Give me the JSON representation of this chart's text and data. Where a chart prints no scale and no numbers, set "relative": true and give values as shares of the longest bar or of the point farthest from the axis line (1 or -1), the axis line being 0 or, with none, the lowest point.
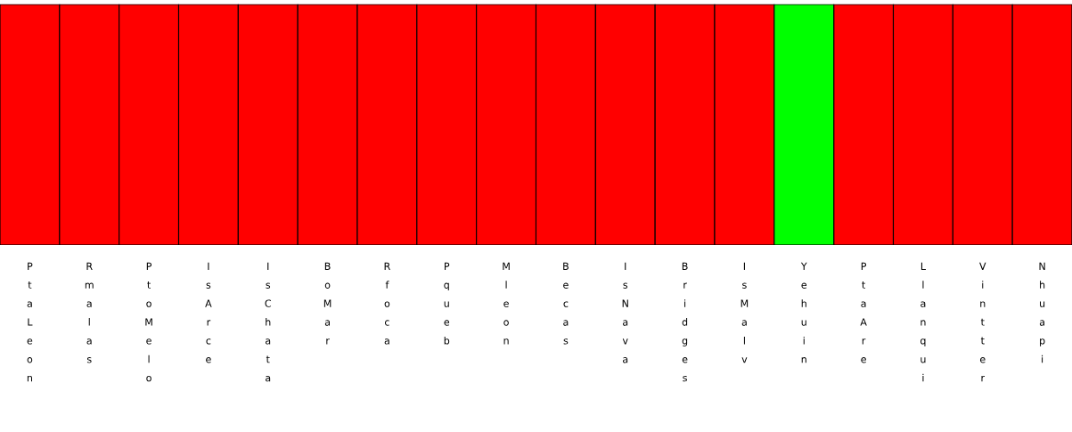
{
  "chart_data": {
    "type": "bar",
    "stacked": true,
    "relative": true,
    "categories": [
      "PtaLeon",
      "Rmalas",
      "PtoMelo",
      "IsArce",
      "IsChata",
      "BoMar",
      "Rfoca",
      "Pqueb",
      "Mleon",
      "Becas",
      "IsNava",
      "Bridges",
      "IsMalv",
      "Yehuin",
      "PtaAre",
      "Llanqui",
      "Vintter",
      "Nhuapi"
    ],
    "series": [
      {
        "color": "#ff0000",
        "values": [
          1,
          1,
          1,
          1,
          1,
          1,
          1,
          1,
          1,
          1,
          1,
          1,
          1,
          0,
          1,
          1,
          1,
          1
        ]
      },
      {
        "color": "#00ff00",
        "values": [
          0,
          0,
          0,
          0,
          0,
          0,
          0,
          0,
          0,
          0,
          0,
          0,
          0,
          1,
          0,
          0,
          0,
          0
        ]
      }
    ]
  }
}
